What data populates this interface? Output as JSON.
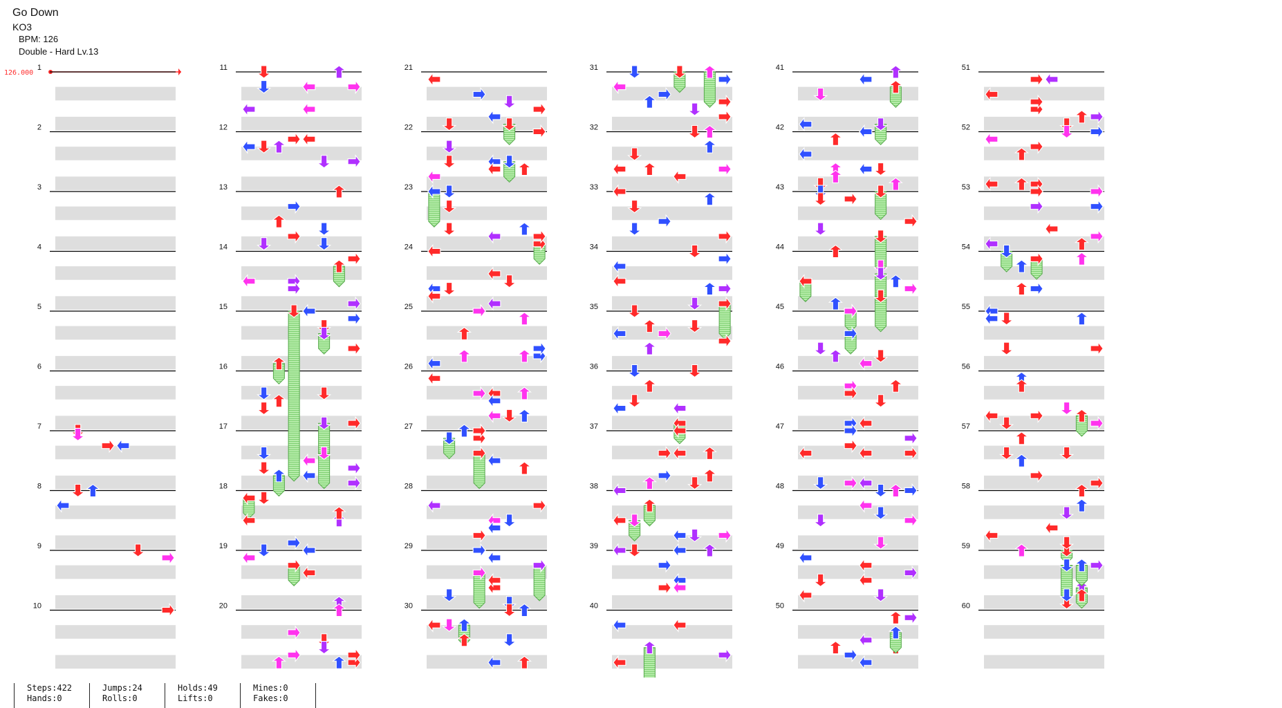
{
  "song": {
    "title": "Go Down",
    "artist": "KO3",
    "bpm_text": "BPM: 126",
    "difficulty_text": "Double - Hard Lv.13"
  },
  "chart_data": {
    "type": "table",
    "bpm_marker": "126.000",
    "lanes": 8,
    "measures_per_column": 10,
    "measure_labels": [
      "1",
      "2",
      "3",
      "4",
      "5",
      "6",
      "7",
      "8",
      "9",
      "10",
      "11",
      "12",
      "13",
      "14",
      "15",
      "16",
      "17",
      "18",
      "19",
      "20",
      "21",
      "22",
      "23",
      "24",
      "25",
      "26",
      "27",
      "28",
      "29",
      "30",
      "31",
      "32",
      "33",
      "34",
      "35",
      "36",
      "37",
      "38",
      "39",
      "40",
      "41",
      "42",
      "43",
      "44",
      "45",
      "46",
      "47",
      "48",
      "49",
      "50",
      "51",
      "52",
      "53",
      "54",
      "55",
      "56",
      "57",
      "58",
      "59",
      "60"
    ],
    "colors": {
      "red": "#ff2a2a",
      "blue": "#3050ff",
      "magenta": "#ff33ee",
      "purple": "#b030ff",
      "hold": "#aaeea0"
    },
    "notes_sample": [
      {
        "m": 7,
        "beat": 0,
        "lane": 1,
        "dir": "down",
        "color": "red"
      },
      {
        "m": 7,
        "beat": 0.25,
        "lane": 1,
        "dir": "down",
        "color": "magenta"
      },
      {
        "m": 7,
        "beat": 1,
        "lane": 3,
        "dir": "right",
        "color": "red"
      },
      {
        "m": 7,
        "beat": 1,
        "lane": 4,
        "dir": "left",
        "color": "blue"
      },
      {
        "m": 8,
        "beat": 0,
        "lane": 1,
        "dir": "down",
        "color": "red"
      },
      {
        "m": 8,
        "beat": 0,
        "lane": 2,
        "dir": "up",
        "color": "blue"
      },
      {
        "m": 8,
        "beat": 1,
        "lane": 0,
        "dir": "left",
        "color": "blue"
      },
      {
        "m": 9,
        "beat": 0,
        "lane": 5,
        "dir": "down",
        "color": "red"
      },
      {
        "m": 9,
        "beat": 0.5,
        "lane": 7,
        "dir": "right",
        "color": "magenta"
      },
      {
        "m": 10,
        "beat": 0,
        "lane": 7,
        "dir": "right",
        "color": "red"
      },
      {
        "m": 11,
        "beat": 0,
        "lane": 1,
        "dir": "down",
        "color": "red"
      },
      {
        "m": 15,
        "beat": 0,
        "lane": 3,
        "dir": "down",
        "color": "red",
        "hold_beats": 11
      },
      {
        "m": 31,
        "beat": 0,
        "lane": 4,
        "dir": "down",
        "color": "red",
        "hold_beats": 1
      },
      {
        "m": 43,
        "beat": 0,
        "lane": 5,
        "dir": "down",
        "color": "red",
        "hold_beats": 1.5
      },
      {
        "m": 59,
        "beat": 0,
        "lane": 5,
        "dir": "down",
        "color": "red",
        "hold_beats": 0.5
      }
    ]
  },
  "stats": {
    "steps": "Steps:422",
    "hands": "Hands:0",
    "jumps": "Jumps:24",
    "rolls": "Rolls:0",
    "holds": "Holds:49",
    "lifts": "Lifts:0",
    "mines": "Mines:0",
    "fakes": "Fakes:0"
  }
}
